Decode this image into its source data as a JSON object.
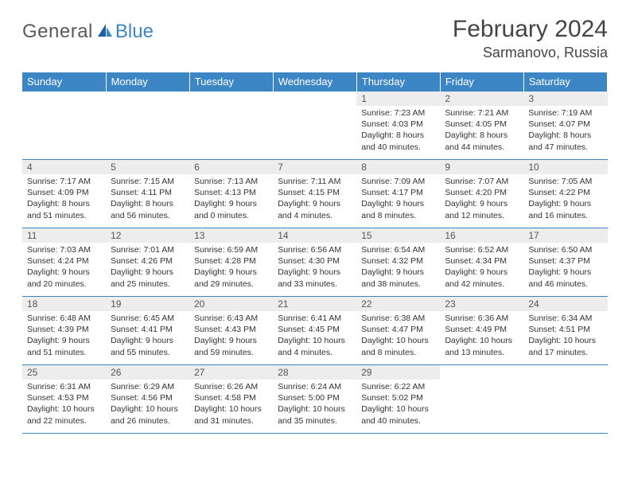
{
  "brand": {
    "part1": "General",
    "part2": "Blue"
  },
  "title": "February 2024",
  "location": "Sarmanovo, Russia",
  "colors": {
    "accent": "#3d86c6",
    "header_bg": "#3d86c6",
    "daynum_bg": "#ededed",
    "rule": "#3d86c6"
  },
  "weekdays": [
    "Sunday",
    "Monday",
    "Tuesday",
    "Wednesday",
    "Thursday",
    "Friday",
    "Saturday"
  ],
  "weeks": [
    [
      {
        "n": "",
        "sr": "",
        "ss": "",
        "dl": ""
      },
      {
        "n": "",
        "sr": "",
        "ss": "",
        "dl": ""
      },
      {
        "n": "",
        "sr": "",
        "ss": "",
        "dl": ""
      },
      {
        "n": "",
        "sr": "",
        "ss": "",
        "dl": ""
      },
      {
        "n": "1",
        "sr": "Sunrise: 7:23 AM",
        "ss": "Sunset: 4:03 PM",
        "dl": "Daylight: 8 hours and 40 minutes."
      },
      {
        "n": "2",
        "sr": "Sunrise: 7:21 AM",
        "ss": "Sunset: 4:05 PM",
        "dl": "Daylight: 8 hours and 44 minutes."
      },
      {
        "n": "3",
        "sr": "Sunrise: 7:19 AM",
        "ss": "Sunset: 4:07 PM",
        "dl": "Daylight: 8 hours and 47 minutes."
      }
    ],
    [
      {
        "n": "4",
        "sr": "Sunrise: 7:17 AM",
        "ss": "Sunset: 4:09 PM",
        "dl": "Daylight: 8 hours and 51 minutes."
      },
      {
        "n": "5",
        "sr": "Sunrise: 7:15 AM",
        "ss": "Sunset: 4:11 PM",
        "dl": "Daylight: 8 hours and 56 minutes."
      },
      {
        "n": "6",
        "sr": "Sunrise: 7:13 AM",
        "ss": "Sunset: 4:13 PM",
        "dl": "Daylight: 9 hours and 0 minutes."
      },
      {
        "n": "7",
        "sr": "Sunrise: 7:11 AM",
        "ss": "Sunset: 4:15 PM",
        "dl": "Daylight: 9 hours and 4 minutes."
      },
      {
        "n": "8",
        "sr": "Sunrise: 7:09 AM",
        "ss": "Sunset: 4:17 PM",
        "dl": "Daylight: 9 hours and 8 minutes."
      },
      {
        "n": "9",
        "sr": "Sunrise: 7:07 AM",
        "ss": "Sunset: 4:20 PM",
        "dl": "Daylight: 9 hours and 12 minutes."
      },
      {
        "n": "10",
        "sr": "Sunrise: 7:05 AM",
        "ss": "Sunset: 4:22 PM",
        "dl": "Daylight: 9 hours and 16 minutes."
      }
    ],
    [
      {
        "n": "11",
        "sr": "Sunrise: 7:03 AM",
        "ss": "Sunset: 4:24 PM",
        "dl": "Daylight: 9 hours and 20 minutes."
      },
      {
        "n": "12",
        "sr": "Sunrise: 7:01 AM",
        "ss": "Sunset: 4:26 PM",
        "dl": "Daylight: 9 hours and 25 minutes."
      },
      {
        "n": "13",
        "sr": "Sunrise: 6:59 AM",
        "ss": "Sunset: 4:28 PM",
        "dl": "Daylight: 9 hours and 29 minutes."
      },
      {
        "n": "14",
        "sr": "Sunrise: 6:56 AM",
        "ss": "Sunset: 4:30 PM",
        "dl": "Daylight: 9 hours and 33 minutes."
      },
      {
        "n": "15",
        "sr": "Sunrise: 6:54 AM",
        "ss": "Sunset: 4:32 PM",
        "dl": "Daylight: 9 hours and 38 minutes."
      },
      {
        "n": "16",
        "sr": "Sunrise: 6:52 AM",
        "ss": "Sunset: 4:34 PM",
        "dl": "Daylight: 9 hours and 42 minutes."
      },
      {
        "n": "17",
        "sr": "Sunrise: 6:50 AM",
        "ss": "Sunset: 4:37 PM",
        "dl": "Daylight: 9 hours and 46 minutes."
      }
    ],
    [
      {
        "n": "18",
        "sr": "Sunrise: 6:48 AM",
        "ss": "Sunset: 4:39 PM",
        "dl": "Daylight: 9 hours and 51 minutes."
      },
      {
        "n": "19",
        "sr": "Sunrise: 6:45 AM",
        "ss": "Sunset: 4:41 PM",
        "dl": "Daylight: 9 hours and 55 minutes."
      },
      {
        "n": "20",
        "sr": "Sunrise: 6:43 AM",
        "ss": "Sunset: 4:43 PM",
        "dl": "Daylight: 9 hours and 59 minutes."
      },
      {
        "n": "21",
        "sr": "Sunrise: 6:41 AM",
        "ss": "Sunset: 4:45 PM",
        "dl": "Daylight: 10 hours and 4 minutes."
      },
      {
        "n": "22",
        "sr": "Sunrise: 6:38 AM",
        "ss": "Sunset: 4:47 PM",
        "dl": "Daylight: 10 hours and 8 minutes."
      },
      {
        "n": "23",
        "sr": "Sunrise: 6:36 AM",
        "ss": "Sunset: 4:49 PM",
        "dl": "Daylight: 10 hours and 13 minutes."
      },
      {
        "n": "24",
        "sr": "Sunrise: 6:34 AM",
        "ss": "Sunset: 4:51 PM",
        "dl": "Daylight: 10 hours and 17 minutes."
      }
    ],
    [
      {
        "n": "25",
        "sr": "Sunrise: 6:31 AM",
        "ss": "Sunset: 4:53 PM",
        "dl": "Daylight: 10 hours and 22 minutes."
      },
      {
        "n": "26",
        "sr": "Sunrise: 6:29 AM",
        "ss": "Sunset: 4:56 PM",
        "dl": "Daylight: 10 hours and 26 minutes."
      },
      {
        "n": "27",
        "sr": "Sunrise: 6:26 AM",
        "ss": "Sunset: 4:58 PM",
        "dl": "Daylight: 10 hours and 31 minutes."
      },
      {
        "n": "28",
        "sr": "Sunrise: 6:24 AM",
        "ss": "Sunset: 5:00 PM",
        "dl": "Daylight: 10 hours and 35 minutes."
      },
      {
        "n": "29",
        "sr": "Sunrise: 6:22 AM",
        "ss": "Sunset: 5:02 PM",
        "dl": "Daylight: 10 hours and 40 minutes."
      },
      {
        "n": "",
        "sr": "",
        "ss": "",
        "dl": ""
      },
      {
        "n": "",
        "sr": "",
        "ss": "",
        "dl": ""
      }
    ]
  ]
}
